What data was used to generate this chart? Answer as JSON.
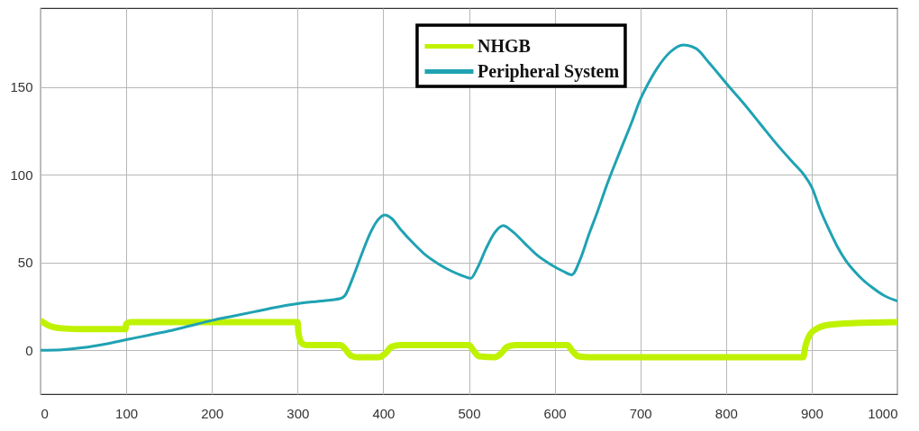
{
  "chart_data": {
    "type": "line",
    "series": [
      {
        "name": "NHGB",
        "color": "#bff200",
        "x": [
          0,
          10,
          25,
          50,
          99,
          100,
          105,
          300,
          301,
          305,
          310,
          350,
          355,
          362,
          370,
          395,
          402,
          410,
          420,
          500,
          505,
          512,
          530,
          537,
          545,
          555,
          615,
          620,
          628,
          640,
          890,
          893,
          898,
          905,
          920,
          950,
          1000
        ],
        "values": [
          17,
          14,
          12.5,
          12,
          12,
          15,
          16,
          16,
          10,
          4,
          3,
          3,
          1,
          -3,
          -4,
          -4,
          -2,
          2,
          3,
          3,
          0,
          -3.5,
          -4,
          -2,
          2,
          3,
          3,
          0,
          -3.5,
          -4,
          -4,
          3,
          9,
          12,
          14.5,
          15.5,
          16
        ]
      },
      {
        "name": "Peripheral System",
        "color": "#1fa2b3",
        "x": [
          0,
          25,
          50,
          75,
          100,
          125,
          150,
          175,
          200,
          225,
          250,
          275,
          300,
          325,
          350,
          355,
          365,
          375,
          385,
          395,
          402,
          410,
          420,
          435,
          450,
          465,
          480,
          495,
          502,
          510,
          520,
          530,
          540,
          550,
          565,
          580,
          595,
          610,
          620,
          630,
          640,
          650,
          660,
          676,
          690,
          700,
          707,
          720,
          735,
          750,
          765,
          780,
          804,
          820,
          840,
          860,
          880,
          891,
          900,
          910,
          920,
          930,
          940,
          950,
          960,
          970,
          985,
          1000
        ],
        "values": [
          0,
          0.3,
          1.5,
          3.5,
          6,
          8.5,
          11,
          14,
          17,
          19.5,
          22,
          24.5,
          26.5,
          28,
          29.5,
          31,
          42,
          55,
          67,
          75,
          77,
          75,
          69,
          61,
          54,
          49,
          45,
          42,
          41,
          47,
          58,
          67,
          71,
          68,
          61,
          54,
          49,
          45,
          43,
          52,
          66,
          79,
          93,
          113,
          130,
          143,
          150,
          161,
          170,
          174,
          172,
          164,
          150,
          141,
          129,
          117,
          106,
          100,
          93,
          80,
          69,
          59,
          51,
          45,
          40,
          36,
          31,
          28
        ]
      }
    ],
    "xlim": [
      0,
      1000
    ],
    "xticks": [
      0,
      100,
      200,
      300,
      400,
      500,
      600,
      700,
      800,
      900,
      1000
    ],
    "ylim": [
      -25,
      195
    ],
    "yticks": [
      0,
      50,
      100,
      150
    ],
    "grid": true,
    "legend": "top"
  }
}
